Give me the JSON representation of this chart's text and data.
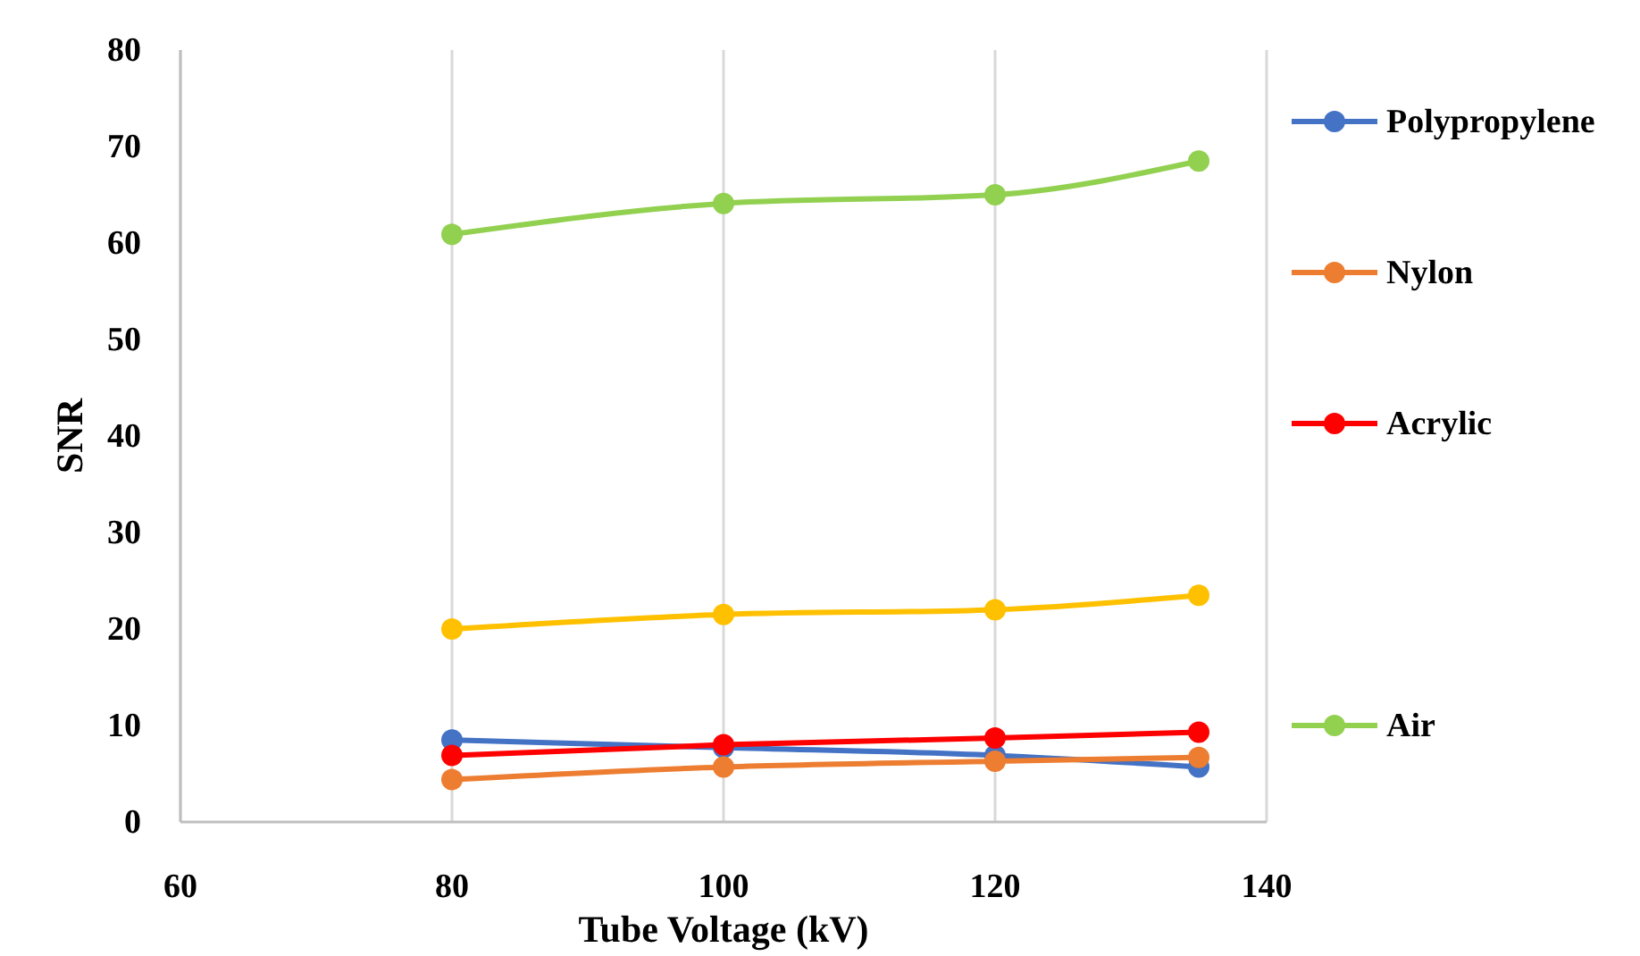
{
  "chart_data": {
    "type": "line",
    "xlabel": "Tube Voltage (kV)",
    "ylabel": "SNR",
    "x": [
      80,
      100,
      120,
      135
    ],
    "series": [
      {
        "name": "Polypropylene",
        "color": "#4472c4",
        "values": [
          8.5,
          7.7,
          6.9,
          5.7
        ]
      },
      {
        "name": "Nylon",
        "color": "#ed7d31",
        "values": [
          4.4,
          5.7,
          6.3,
          6.7
        ]
      },
      {
        "name": "Acrylic",
        "color": "#ff0000",
        "values": [
          6.9,
          8.0,
          8.7,
          9.3
        ]
      },
      {
        "color": "#ffc000",
        "values": [
          20.0,
          21.5,
          22.0,
          23.5
        ]
      },
      {
        "name": "Air",
        "color": "#92d050",
        "values": [
          60.9,
          64.1,
          65.0,
          68.5
        ]
      }
    ],
    "xlim": [
      60,
      140
    ],
    "xticks": [
      60,
      80,
      100,
      120,
      140
    ],
    "ylim": [
      0,
      80
    ],
    "yticks": [
      0,
      10,
      20,
      30,
      40,
      50,
      60,
      70,
      80
    ],
    "grid": "x",
    "legend": "right",
    "marker": "circle",
    "line_style": "solid"
  }
}
